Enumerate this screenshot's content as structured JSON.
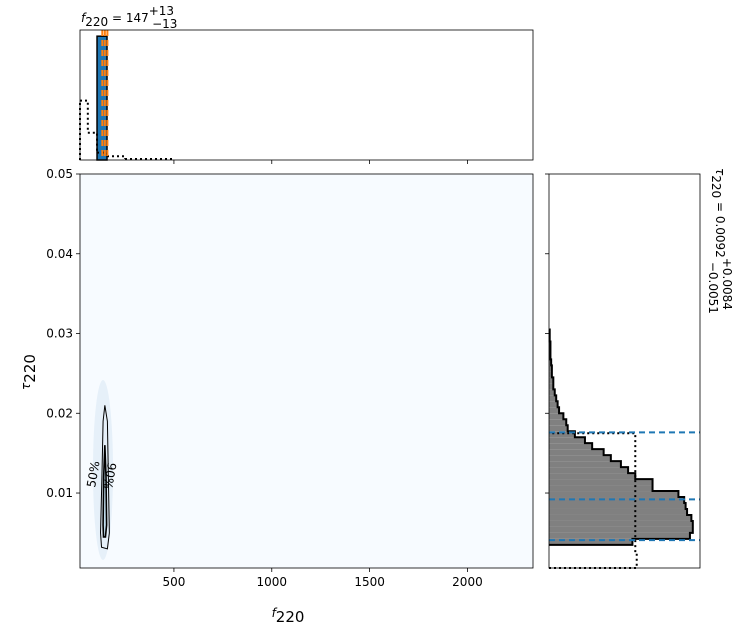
{
  "chart_data": {
    "type": "corner",
    "title": {
      "symbol": "f",
      "sub": "220",
      "text": " = 147",
      "plus": "+13",
      "minus": "−13"
    },
    "right_title": {
      "symbol": "τ",
      "sub": "220",
      "text": " = 0.0092",
      "plus": "+0.0084",
      "minus": "−0.0051"
    },
    "xlabel": {
      "symbol": "f",
      "sub": "220"
    },
    "ylabel": {
      "symbol": "τ",
      "sub": "220"
    },
    "xlim": [
      20,
      2335
    ],
    "ylim": [
      0.0006,
      0.05
    ],
    "xticks": [
      500,
      1000,
      1500,
      2000
    ],
    "yticks": [
      0.01,
      0.02,
      0.03,
      0.04,
      0.05
    ],
    "f_hist": {
      "bins": [
        107,
        158
      ],
      "values": [
        1.0
      ],
      "color": "#1f77b4",
      "ylim": [
        0,
        1.05
      ]
    },
    "f_prior": {
      "bins": [
        20,
        60,
        107,
        158,
        250,
        500
      ],
      "values": [
        0.48,
        0.22,
        0.06,
        0.03,
        0.008
      ]
    },
    "f_quantiles": {
      "values": [
        134,
        147,
        160
      ],
      "color": "#ff7f0e"
    },
    "tau_hist": {
      "color": "#808080",
      "xlim": [
        0,
        1.05
      ],
      "bins": [
        0.0035,
        0.00425,
        0.005,
        0.00575,
        0.0065,
        0.00725,
        0.008,
        0.00875,
        0.0095,
        0.01025,
        0.011,
        0.01175,
        0.0125,
        0.01325,
        0.014,
        0.01475,
        0.0155,
        0.01625,
        0.017,
        0.01775,
        0.0185,
        0.01925,
        0.02,
        0.02075,
        0.0215,
        0.02225,
        0.023,
        0.02375,
        0.0245,
        0.02525,
        0.026,
        0.02675,
        0.0275,
        0.02825,
        0.029,
        0.02975,
        0.0305
      ],
      "values": [
        0.58,
        0.98,
        1.0,
        1.0,
        0.99,
        0.96,
        0.95,
        0.94,
        0.9,
        0.72,
        0.72,
        0.6,
        0.55,
        0.5,
        0.43,
        0.38,
        0.3,
        0.25,
        0.18,
        0.13,
        0.12,
        0.1,
        0.07,
        0.06,
        0.05,
        0.04,
        0.03,
        0.03,
        0.02,
        0.02,
        0.015,
        0.01,
        0.01,
        0.01,
        0.005,
        0.005
      ]
    },
    "tau_prior": {
      "bins": [
        0.0006,
        0.0025,
        0.0175
      ],
      "values": [
        0.61,
        0.6
      ]
    },
    "tau_quantiles": {
      "values": [
        0.0041,
        0.0092,
        0.0176
      ],
      "color": "#1f77b4"
    },
    "contours": [
      {
        "label": "90%",
        "x": [
          147,
          160,
          165,
          170,
          160,
          130,
          125,
          132,
          138
        ],
        "y": [
          0.021,
          0.019,
          0.012,
          0.005,
          0.003,
          0.0032,
          0.005,
          0.012,
          0.019
        ]
      },
      {
        "label": "50%",
        "x": [
          147,
          153,
          156,
          150,
          140,
          138,
          141
        ],
        "y": [
          0.016,
          0.012,
          0.006,
          0.0045,
          0.0045,
          0.006,
          0.012
        ]
      }
    ]
  }
}
